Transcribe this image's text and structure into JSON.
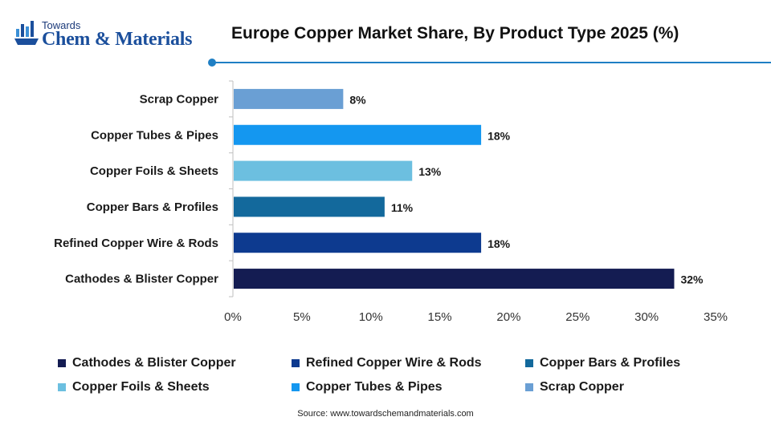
{
  "logo": {
    "top_text": "Towards",
    "main_text": "Chem & Materials"
  },
  "title": "Europe Copper Market Share, By Product Type 2025 (%)",
  "source": "Source: www.towardschemandmaterials.com",
  "colors": {
    "accent_line": "#1f7fc4",
    "logo_blue": "#1b4f9c"
  },
  "chart_data": {
    "type": "bar",
    "orientation": "horizontal",
    "categories": [
      "Scrap Copper",
      "Copper Tubes & Pipes",
      "Copper Foils & Sheets",
      "Copper Bars & Profiles",
      "Refined Copper Wire & Rods",
      "Cathodes & Blister Copper"
    ],
    "values": [
      8,
      18,
      13,
      11,
      18,
      32
    ],
    "value_labels": [
      "8%",
      "18%",
      "13%",
      "11%",
      "18%",
      "32%"
    ],
    "bar_colors": [
      "#6a9fd4",
      "#1497f0",
      "#6cbfe0",
      "#13699c",
      "#0d3a8f",
      "#141c52"
    ],
    "xlim": [
      0,
      35
    ],
    "x_ticks": [
      0,
      5,
      10,
      15,
      20,
      25,
      30,
      35
    ],
    "x_tick_labels": [
      "0%",
      "5%",
      "10%",
      "15%",
      "20%",
      "25%",
      "30%",
      "35%"
    ],
    "grid": false,
    "legend_position": "bottom",
    "legend": [
      {
        "label": "Cathodes & Blister Copper",
        "color": "#141c52"
      },
      {
        "label": "Refined Copper Wire & Rods",
        "color": "#0d3a8f"
      },
      {
        "label": "Copper Bars & Profiles",
        "color": "#13699c"
      },
      {
        "label": "Copper Foils & Sheets",
        "color": "#6cbfe0"
      },
      {
        "label": "Copper Tubes & Pipes",
        "color": "#1497f0"
      },
      {
        "label": "Scrap Copper",
        "color": "#6a9fd4"
      }
    ]
  }
}
